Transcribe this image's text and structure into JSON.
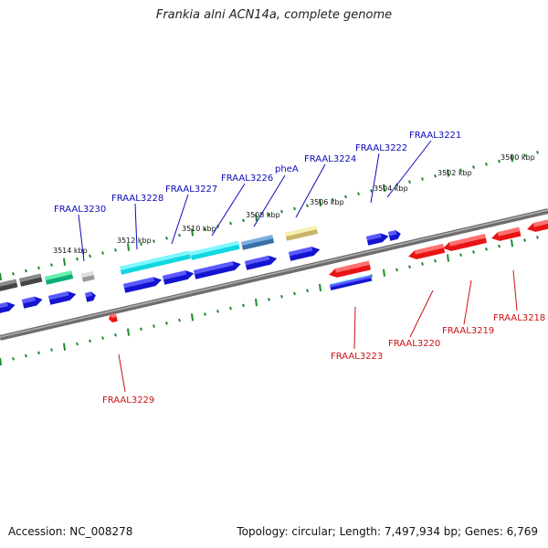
{
  "title": "Frankia alni ACN14a, complete genome",
  "footer": {
    "accession": "Accession: NC_008278",
    "summary": "Topology: circular; Length: 7,497,934 bp; Genes: 6,769"
  },
  "colors": {
    "backbone": "#8a8a8a",
    "tick": "#1d8a2a",
    "forward_label": "#0b0bb8",
    "reverse_label": "#cc1111",
    "forward_cds": "#1414d0",
    "reverse_cds": "#ee1a1a"
  },
  "ticks": [
    "3514 kbp",
    "3512 kbp",
    "3510 kbp",
    "3508 kbp",
    "3506 kbp",
    "3504 kbp",
    "3502 kbp",
    "3500 kbp"
  ],
  "forward_labels": [
    "FRAAL3230",
    "FRAAL3228",
    "FRAAL3227",
    "FRAAL3226",
    "pheA",
    "FRAAL3224",
    "FRAAL3222",
    "FRAAL3221"
  ],
  "reverse_labels": [
    "FRAAL3229",
    "FRAAL3223",
    "FRAAL3220",
    "FRAAL3219",
    "FRAAL3218"
  ]
}
